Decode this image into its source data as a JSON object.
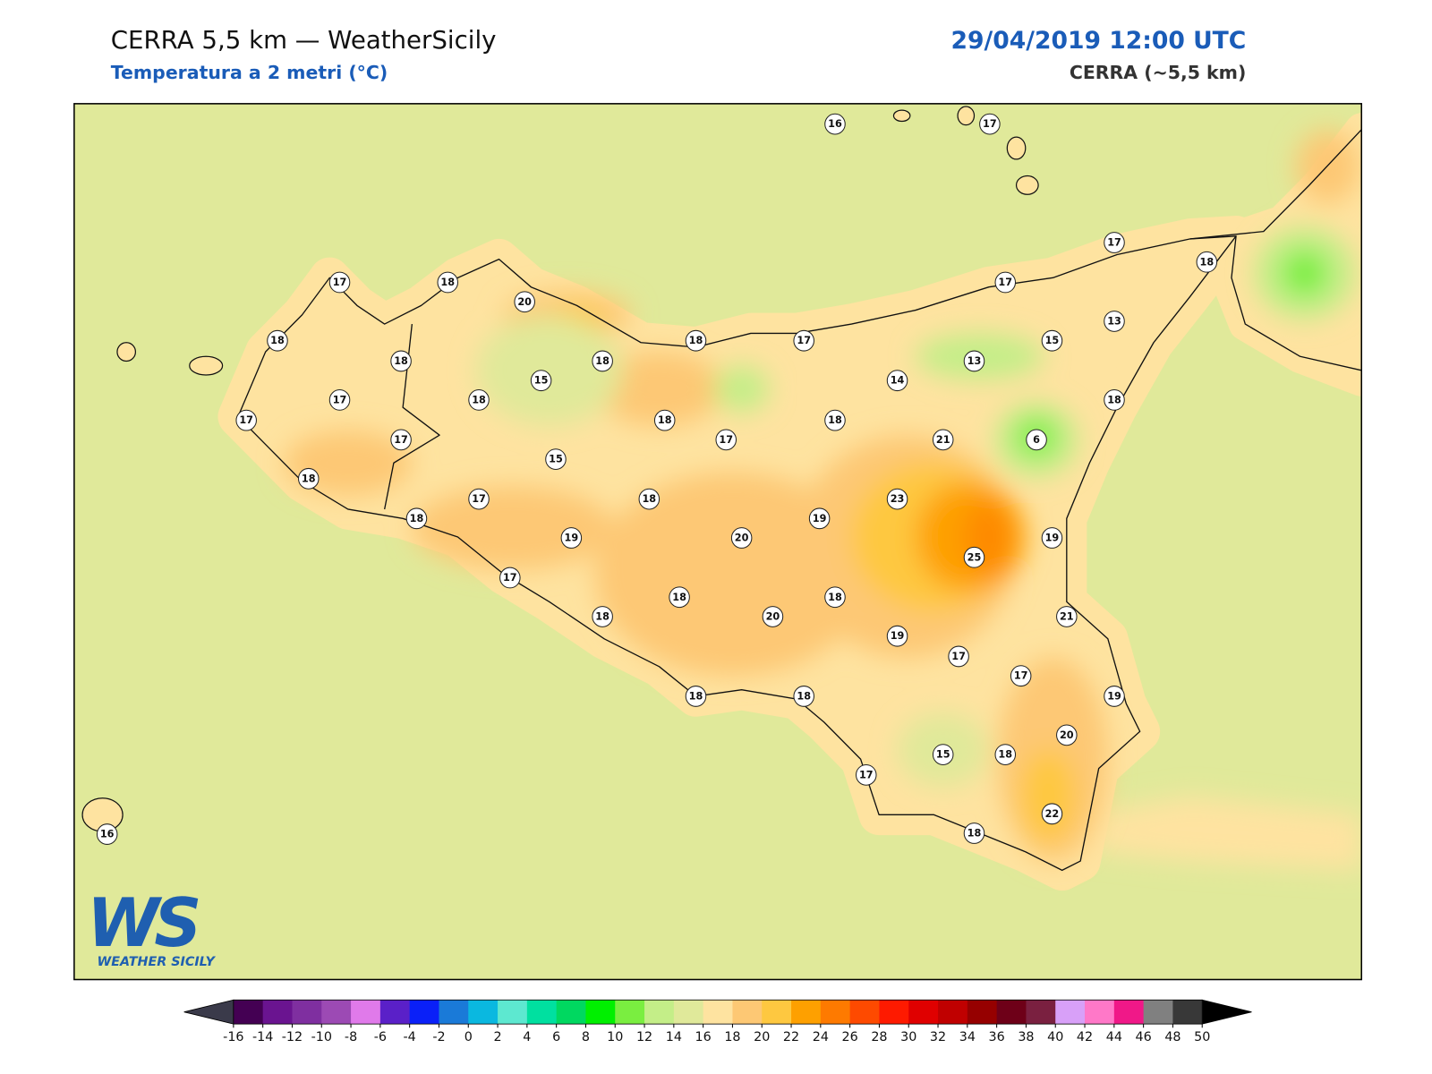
{
  "header": {
    "title": "CERRA 5,5 km — WeatherSicily",
    "subtitle": "Temperatura a 2 metri (°C)",
    "date": "29/04/2019 12:00 UTC",
    "model": "CERRA (~5,5 km)"
  },
  "stations": [
    16,
    17,
    17,
    18,
    17,
    18,
    20,
    17,
    13,
    18,
    18,
    15,
    18,
    18,
    17,
    15,
    13,
    14,
    17,
    18,
    18,
    17,
    17,
    18,
    17,
    18,
    21,
    6,
    15,
    18,
    17,
    18,
    23,
    19,
    20,
    19,
    18,
    19,
    25,
    17,
    18,
    18,
    20,
    18,
    21,
    19,
    17,
    17,
    18,
    18,
    19,
    20,
    15,
    18,
    17,
    22,
    18,
    16
  ],
  "colorbar": {
    "ticks": [
      -16,
      -14,
      -12,
      -10,
      -8,
      -6,
      -4,
      -2,
      0,
      2,
      4,
      6,
      8,
      10,
      12,
      14,
      16,
      18,
      20,
      22,
      24,
      26,
      28,
      30,
      32,
      34,
      36,
      38,
      40,
      42,
      44,
      46,
      48,
      50
    ],
    "colors": [
      "#440053",
      "#6a1490",
      "#7f2fa0",
      "#9c4ab4",
      "#e07aea",
      "#5a20c8",
      "#0a20f8",
      "#1a7ad8",
      "#0ab8e0",
      "#5de8d0",
      "#00e0a0",
      "#00d860",
      "#00f000",
      "#7aee40",
      "#c4ee88",
      "#e0e99a",
      "#fee3a0",
      "#fdc874",
      "#fec840",
      "#fea000",
      "#fe7a00",
      "#fe4a00",
      "#fe1a00",
      "#e00000",
      "#c00000",
      "#960000",
      "#6e0018",
      "#7a2040",
      "#d8a0f8",
      "#ff78c8",
      "#f01888",
      "#808080",
      "#383838"
    ],
    "under_color": "#3a3a4a",
    "over_color": "#000000"
  },
  "logo": {
    "mark": "WS",
    "name": "WEATHER SICILY"
  }
}
